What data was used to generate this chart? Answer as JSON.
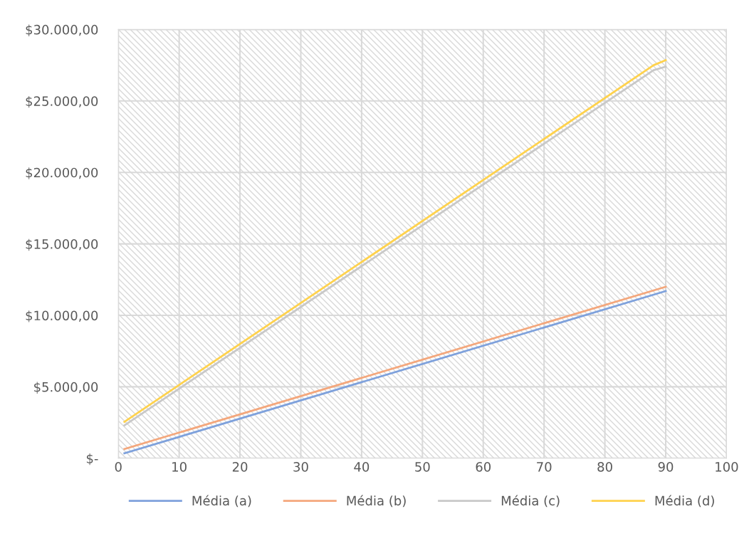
{
  "chart_data": {
    "type": "line",
    "series": [
      {
        "name": "Média (a)",
        "color": "#7ea1dc",
        "x": [
          1,
          90
        ],
        "values": [
          350,
          11700
        ]
      },
      {
        "name": "Média (b)",
        "color": "#f4a77c",
        "x": [
          1,
          90
        ],
        "values": [
          650,
          12000
        ]
      },
      {
        "name": "Média (c)",
        "color": "#c8c8c8",
        "x": [
          1,
          88,
          90
        ],
        "values": [
          2300,
          27150,
          27400
        ]
      },
      {
        "name": "Média (d)",
        "color": "#ffd24d",
        "x": [
          1,
          88,
          90
        ],
        "values": [
          2550,
          27500,
          27850
        ]
      }
    ],
    "xlim": [
      0,
      100
    ],
    "xticks": [
      0,
      10,
      20,
      30,
      40,
      50,
      60,
      70,
      80,
      90,
      100
    ],
    "ylim": [
      0,
      30000
    ],
    "yticks": [
      {
        "value": 0,
        "label": "$-"
      },
      {
        "value": 5000,
        "label": "$5.000,00"
      },
      {
        "value": 10000,
        "label": "$10.000,00"
      },
      {
        "value": 15000,
        "label": "$15.000,00"
      },
      {
        "value": 20000,
        "label": "$20.000,00"
      },
      {
        "value": 25000,
        "label": "$25.000,00"
      },
      {
        "value": 30000,
        "label": "$30.000,00"
      }
    ],
    "grid": true,
    "legend": "bottom",
    "marker": "none",
    "line_style": "solid"
  }
}
